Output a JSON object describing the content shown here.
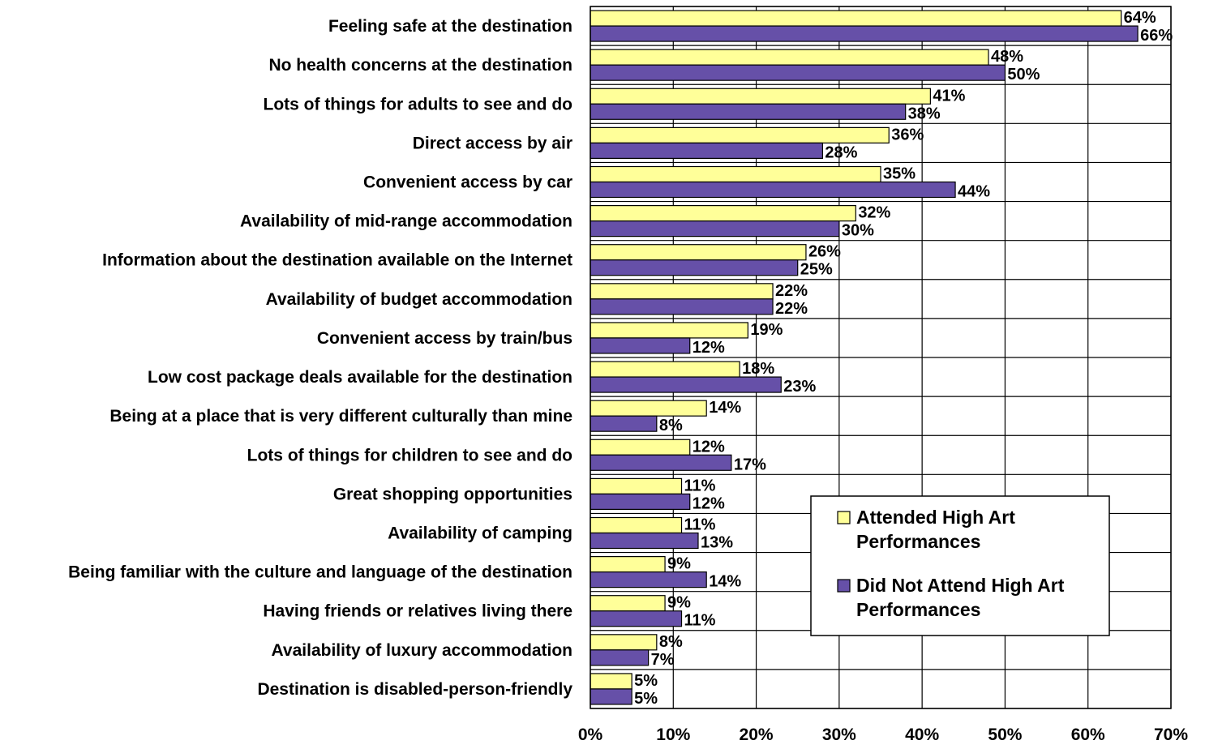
{
  "chart_data": {
    "type": "bar",
    "orientation": "horizontal",
    "categories": [
      "Feeling safe at the destination",
      "No health concerns at the destination",
      "Lots of things for adults to see and do",
      "Direct access by air",
      "Convenient access by car",
      "Availability of mid-range accommodation",
      "Information about the destination available on the Internet",
      "Availability of budget accommodation",
      "Convenient access by train/bus",
      "Low cost package deals available for the destination",
      "Being at a place that is very different culturally than mine",
      "Lots of things for children to see and do",
      "Great shopping opportunities",
      "Availability of camping",
      "Being familiar with the culture and language of the destination",
      "Having friends or relatives living there",
      "Availability of luxury accommodation",
      "Destination is disabled-person-friendly"
    ],
    "series": [
      {
        "name": "Attended High Art Performances",
        "color": "#ffff99",
        "values": [
          64,
          48,
          41,
          36,
          35,
          32,
          26,
          22,
          19,
          18,
          14,
          12,
          11,
          11,
          9,
          9,
          8,
          5
        ],
        "labels": [
          "64%",
          "48%",
          "41%",
          "36%",
          "35%",
          "32%",
          "26%",
          "22%",
          "19%",
          "18%",
          "14%",
          "12%",
          "11%",
          "11%",
          "9%",
          "9%",
          "8%",
          "5%"
        ]
      },
      {
        "name": "Did Not Attend High Art Performances",
        "color": "#6650a8",
        "values": [
          66,
          50,
          38,
          28,
          44,
          30,
          25,
          22,
          12,
          23,
          8,
          17,
          12,
          13,
          14,
          11,
          7,
          5
        ],
        "labels": [
          "66%",
          "50%",
          "38%",
          "28%",
          "44%",
          "30%",
          "25%",
          "22%",
          "12%",
          "23%",
          "8%",
          "17%",
          "12%",
          "13%",
          "14%",
          "11%",
          "7%",
          "5%"
        ]
      }
    ],
    "xlim": [
      0,
      70
    ],
    "xticks": [
      0,
      10,
      20,
      30,
      40,
      50,
      60,
      70
    ],
    "xtick_labels": [
      "0%",
      "10%",
      "20%",
      "30%",
      "40%",
      "50%",
      "60%",
      "70%"
    ],
    "grid": true,
    "legend_position": "bottom-right",
    "title": "",
    "xlabel": "",
    "ylabel": ""
  }
}
